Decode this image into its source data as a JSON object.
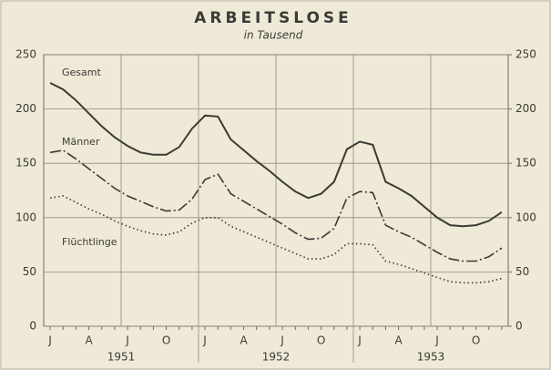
{
  "chart_data": {
    "type": "line",
    "title": "ARBEITSLOSE",
    "subtitle": "in Tausend",
    "categories": [
      "J",
      null,
      null,
      "A",
      null,
      null,
      "J",
      null,
      null,
      "O",
      null,
      null,
      "J",
      null,
      null,
      "A",
      null,
      null,
      "J",
      null,
      null,
      "O",
      null,
      null,
      "J",
      null,
      null,
      "A",
      null,
      null,
      "J",
      null,
      null,
      "O",
      null,
      null
    ],
    "groups": [
      "1951",
      "1952",
      "1953"
    ],
    "ylim": [
      0,
      250
    ],
    "yticks": [
      0,
      50,
      100,
      150,
      200,
      250
    ],
    "y2lim": [
      0,
      250
    ],
    "y2ticks": [
      0,
      50,
      100,
      150,
      200,
      250
    ],
    "grid": true,
    "series": [
      {
        "name": "Gesamt",
        "color": "#3a3a34",
        "style": "solid",
        "values": [
          224,
          218,
          208,
          196,
          184,
          174,
          166,
          160,
          158,
          158,
          165,
          182,
          194,
          193,
          172,
          162,
          152,
          143,
          133,
          124,
          118,
          122,
          133,
          163,
          170,
          167,
          133,
          127,
          120,
          110,
          100,
          93,
          92,
          93,
          97,
          105
        ]
      },
      {
        "name": "Männer",
        "color": "#3a3a34",
        "style": "dashdot",
        "values": [
          160,
          162,
          154,
          145,
          136,
          127,
          120,
          115,
          110,
          106,
          107,
          117,
          135,
          140,
          122,
          115,
          108,
          101,
          94,
          86,
          80,
          81,
          90,
          118,
          124,
          123,
          93,
          87,
          82,
          75,
          68,
          62,
          60,
          60,
          64,
          72
        ]
      },
      {
        "name": "Flüchtlinge",
        "color": "#3a3a34",
        "style": "dotted",
        "values": [
          118,
          120,
          114,
          108,
          103,
          97,
          92,
          88,
          85,
          84,
          87,
          95,
          100,
          100,
          92,
          87,
          82,
          77,
          72,
          67,
          62,
          62,
          66,
          76,
          76,
          75,
          60,
          57,
          53,
          49,
          45,
          41,
          40,
          40,
          41,
          44
        ]
      }
    ]
  }
}
